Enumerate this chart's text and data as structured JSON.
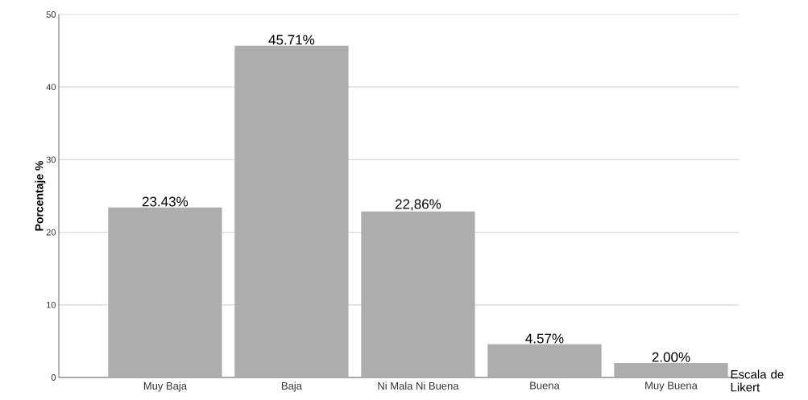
{
  "chart_data": {
    "type": "bar",
    "ylabel": "Porcentaje  %",
    "xlabel": "Escala de Likert",
    "categories": [
      "Muy Baja",
      "Baja",
      "Ni Mala Ni Buena",
      "Buena",
      "Muy Buena"
    ],
    "values": [
      23.43,
      45.71,
      22.86,
      4.57,
      2.0
    ],
    "value_labels": [
      "23.43%",
      "45.71%",
      "22,86%",
      "4.57%",
      "2.00%"
    ],
    "color": "#adadad",
    "ylim": [
      0,
      50
    ],
    "yticks": [
      0,
      10,
      20,
      30,
      40,
      50
    ],
    "grid": "y"
  }
}
